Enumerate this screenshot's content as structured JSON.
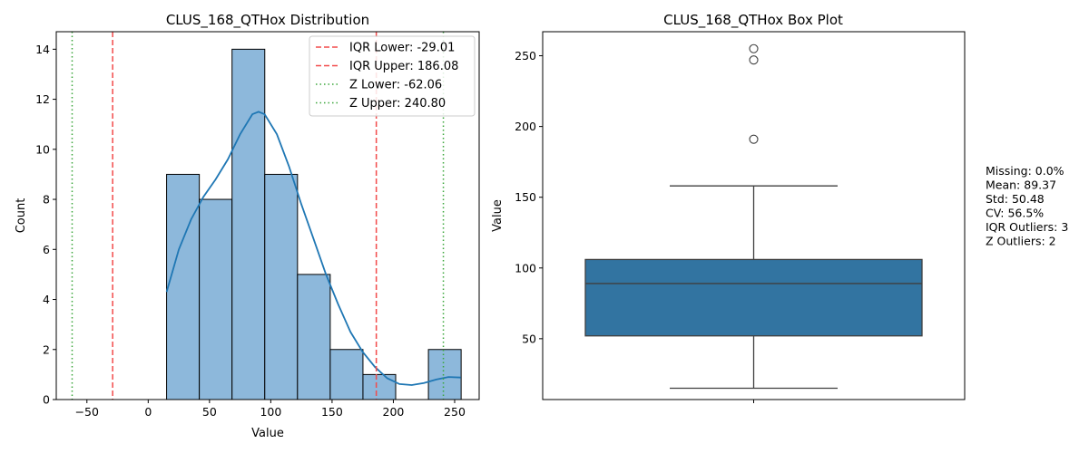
{
  "chart_data": [
    {
      "type": "histogram",
      "title": "CLUS_168_QTHox Distribution",
      "xlabel": "Value",
      "ylabel": "Count",
      "xlim": [
        -75,
        270
      ],
      "ylim": [
        0,
        14.7
      ],
      "xticks": [
        -50,
        0,
        50,
        100,
        150,
        200,
        250
      ],
      "yticks": [
        0,
        2,
        4,
        6,
        8,
        10,
        12,
        14
      ],
      "bins": [
        {
          "x0": 15,
          "x1": 41.7,
          "count": 9
        },
        {
          "x0": 41.7,
          "x1": 68.4,
          "count": 8
        },
        {
          "x0": 68.4,
          "x1": 95.1,
          "count": 14
        },
        {
          "x0": 95.1,
          "x1": 121.8,
          "count": 9
        },
        {
          "x0": 121.8,
          "x1": 148.5,
          "count": 5
        },
        {
          "x0": 148.5,
          "x1": 175.2,
          "count": 2
        },
        {
          "x0": 175.2,
          "x1": 201.9,
          "count": 1
        },
        {
          "x0": 201.9,
          "x1": 228.6,
          "count": 0
        },
        {
          "x0": 228.6,
          "x1": 255.3,
          "count": 2
        }
      ],
      "kde": {
        "x": [
          15,
          25,
          35,
          45,
          55,
          65,
          75,
          85,
          90,
          95,
          105,
          115,
          125,
          135,
          145,
          155,
          165,
          175,
          185,
          195,
          205,
          215,
          225,
          235,
          245,
          255
        ],
        "y": [
          4.3,
          6.0,
          7.2,
          8.1,
          8.8,
          9.6,
          10.6,
          11.4,
          11.5,
          11.4,
          10.6,
          9.3,
          7.8,
          6.4,
          5.0,
          3.8,
          2.7,
          1.9,
          1.3,
          0.85,
          0.62,
          0.58,
          0.66,
          0.8,
          0.9,
          0.88
        ]
      },
      "reference_lines": [
        {
          "label": "IQR Lower: -29.01",
          "value": -29.01,
          "style": "dashed",
          "color": "#f24a4a"
        },
        {
          "label": "IQR Upper: 186.08",
          "value": 186.08,
          "style": "dashed",
          "color": "#f24a4a"
        },
        {
          "label": "Z Lower: -62.06",
          "value": -62.06,
          "style": "dotted",
          "color": "#3aa63a"
        },
        {
          "label": "Z Upper: 240.80",
          "value": 240.8,
          "style": "dotted",
          "color": "#3aa63a"
        }
      ],
      "legend_position": "top-right",
      "bar_color": "#8db8db",
      "line_color": "#1f77b4"
    },
    {
      "type": "box",
      "title": "CLUS_168_QTHox Box Plot",
      "xlabel": "",
      "ylabel": "Value",
      "ylim": [
        7,
        267
      ],
      "yticks": [
        50,
        100,
        150,
        200,
        250
      ],
      "whisker_low": 15,
      "q1": 52,
      "median": 89,
      "q3": 106,
      "whisker_high": 158,
      "outliers": [
        191,
        247,
        255
      ],
      "box_color": "#3274a1"
    }
  ],
  "stats": {
    "lines": [
      "Missing: 0.0%",
      "Mean: 89.37",
      "Std: 50.48",
      "CV: 56.5%",
      "IQR Outliers: 3",
      "Z Outliers: 2"
    ]
  }
}
